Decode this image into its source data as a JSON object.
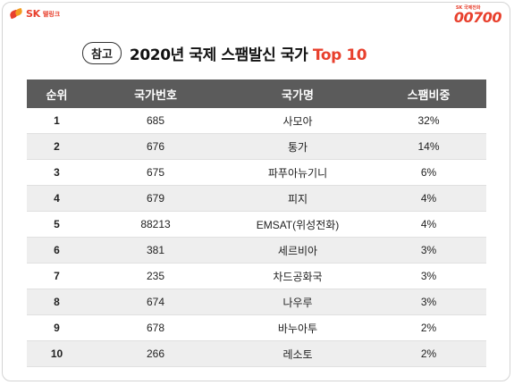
{
  "brand": {
    "left_logo_text": "SK",
    "left_logo_sub": "텔링크",
    "right_logo_small": "SK 국제전화",
    "right_logo_big": "00700"
  },
  "header": {
    "tag": "참고",
    "title_main": "2020년 국제 스팸발신 국가 ",
    "title_accent": "Top 10"
  },
  "table": {
    "columns": [
      "순위",
      "국가번호",
      "국가명",
      "스팸비중"
    ],
    "rows": [
      {
        "rank": "1",
        "code": "685",
        "country": "사모아",
        "share": "32%"
      },
      {
        "rank": "2",
        "code": "676",
        "country": "통가",
        "share": "14%"
      },
      {
        "rank": "3",
        "code": "675",
        "country": "파푸아뉴기니",
        "share": "6%"
      },
      {
        "rank": "4",
        "code": "679",
        "country": "피지",
        "share": "4%"
      },
      {
        "rank": "5",
        "code": "88213",
        "country": "EMSAT(위성전화)",
        "share": "4%"
      },
      {
        "rank": "6",
        "code": "381",
        "country": "세르비아",
        "share": "3%"
      },
      {
        "rank": "7",
        "code": "235",
        "country": "차드공화국",
        "share": "3%"
      },
      {
        "rank": "8",
        "code": "674",
        "country": "나우루",
        "share": "3%"
      },
      {
        "rank": "9",
        "code": "678",
        "country": "바누아투",
        "share": "2%"
      },
      {
        "rank": "10",
        "code": "266",
        "country": "레소토",
        "share": "2%"
      }
    ]
  },
  "colors": {
    "brand_red": "#e8402d",
    "header_bg": "#5b5b5b",
    "stripe": "#eeeeee"
  }
}
